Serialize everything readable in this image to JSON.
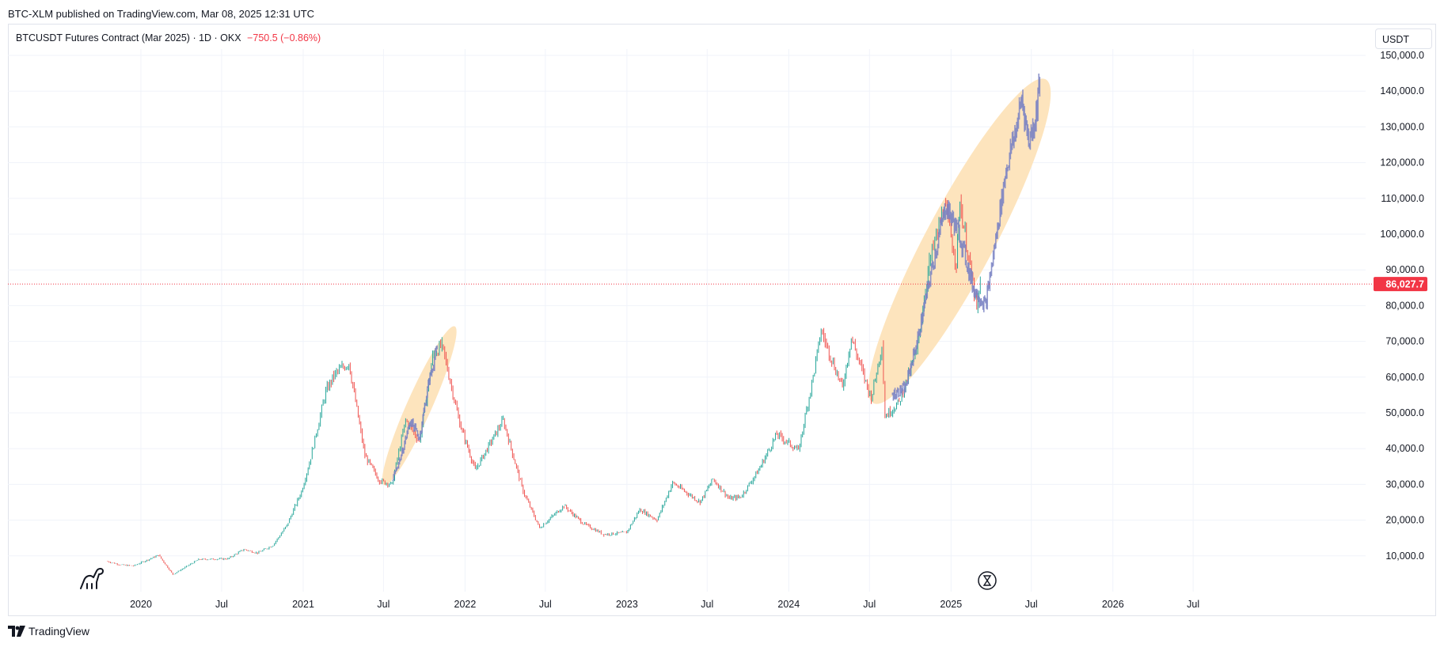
{
  "header": {
    "published": "BTC-XLM published on TradingView.com, Mar 08, 2025 12:31 UTC"
  },
  "legend": {
    "symbol": "BTCUSDT Futures Contract (Mar 2025) · 1D · OKX",
    "change": "−750.5 (−0.86%)"
  },
  "currency_button": "USDT",
  "footer": {
    "brand": "TradingView"
  },
  "colors": {
    "up": "#26a69a",
    "down": "#ef5350",
    "projection": "#7b83c4",
    "highlight": "#fde4bd",
    "last_price": "#f23645"
  },
  "icons": [
    "dino-icon",
    "hourglass-icon",
    "tradingview-logo-icon"
  ],
  "chart_data": {
    "type": "candlestick",
    "y_ticks": [
      "150,000.0",
      "140,000.0",
      "130,000.0",
      "120,000.0",
      "110,000.0",
      "100,000.0",
      "90,000.0",
      "80,000.0",
      "70,000.0",
      "60,000.0",
      "50,000.0",
      "40,000.0",
      "30,000.0",
      "20,000.0",
      "10,000.0"
    ],
    "y_tick_values": [
      150000,
      140000,
      130000,
      120000,
      110000,
      100000,
      90000,
      80000,
      70000,
      60000,
      50000,
      40000,
      30000,
      20000,
      10000
    ],
    "x_ticks": [
      "2020",
      "Jul",
      "2021",
      "Jul",
      "2022",
      "Jul",
      "2023",
      "Jul",
      "2024",
      "Jul",
      "2025",
      "Jul",
      "2026",
      "Jul"
    ],
    "x_tick_dates": [
      "2020-01-01",
      "2020-07-01",
      "2021-01-01",
      "2021-07-01",
      "2022-01-01",
      "2022-07-01",
      "2023-01-01",
      "2023-07-01",
      "2024-01-01",
      "2024-07-01",
      "2025-01-01",
      "2025-07-01",
      "2026-01-01",
      "2026-07-01"
    ],
    "last_price": 86027.7,
    "last_price_label": "86,027.7",
    "historical": [
      {
        "date": "2019-10-15",
        "close": 8500
      },
      {
        "date": "2019-11-15",
        "close": 7500
      },
      {
        "date": "2019-12-15",
        "close": 7200
      },
      {
        "date": "2020-02-10",
        "close": 10200
      },
      {
        "date": "2020-03-13",
        "close": 4800
      },
      {
        "date": "2020-05-10",
        "close": 9000
      },
      {
        "date": "2020-07-15",
        "close": 9200
      },
      {
        "date": "2020-08-20",
        "close": 11800
      },
      {
        "date": "2020-09-20",
        "close": 10800
      },
      {
        "date": "2020-10-25",
        "close": 13000
      },
      {
        "date": "2020-11-25",
        "close": 18500
      },
      {
        "date": "2020-12-28",
        "close": 28000
      },
      {
        "date": "2021-01-15",
        "close": 36000
      },
      {
        "date": "2021-02-21",
        "close": 56000
      },
      {
        "date": "2021-03-14",
        "close": 61000
      },
      {
        "date": "2021-04-14",
        "close": 64000
      },
      {
        "date": "2021-05-20",
        "close": 38000
      },
      {
        "date": "2021-06-22",
        "close": 31000
      },
      {
        "date": "2021-07-20",
        "close": 30000
      },
      {
        "date": "2021-08-20",
        "close": 48000
      },
      {
        "date": "2021-09-20",
        "close": 42000
      },
      {
        "date": "2021-10-20",
        "close": 66000
      },
      {
        "date": "2021-11-10",
        "close": 69000
      },
      {
        "date": "2021-12-20",
        "close": 47000
      },
      {
        "date": "2022-01-24",
        "close": 34000
      },
      {
        "date": "2022-03-28",
        "close": 48000
      },
      {
        "date": "2022-05-12",
        "close": 28000
      },
      {
        "date": "2022-06-18",
        "close": 17800
      },
      {
        "date": "2022-08-12",
        "close": 24000
      },
      {
        "date": "2022-09-25",
        "close": 19000
      },
      {
        "date": "2022-11-10",
        "close": 16000
      },
      {
        "date": "2022-12-31",
        "close": 16500
      },
      {
        "date": "2023-01-30",
        "close": 23000
      },
      {
        "date": "2023-03-10",
        "close": 20000
      },
      {
        "date": "2023-04-14",
        "close": 30500
      },
      {
        "date": "2023-06-15",
        "close": 25000
      },
      {
        "date": "2023-07-14",
        "close": 31500
      },
      {
        "date": "2023-08-20",
        "close": 26000
      },
      {
        "date": "2023-09-15",
        "close": 26500
      },
      {
        "date": "2023-10-25",
        "close": 34000
      },
      {
        "date": "2023-12-05",
        "close": 44000
      },
      {
        "date": "2024-01-23",
        "close": 39500
      },
      {
        "date": "2024-02-28",
        "close": 62000
      },
      {
        "date": "2024-03-14",
        "close": 73000
      },
      {
        "date": "2024-05-01",
        "close": 57000
      },
      {
        "date": "2024-05-21",
        "close": 71000
      },
      {
        "date": "2024-07-05",
        "close": 54000
      },
      {
        "date": "2024-07-29",
        "close": 69000
      },
      {
        "date": "2024-08-05",
        "close": 49000
      },
      {
        "date": "2024-09-06",
        "close": 53000
      },
      {
        "date": "2024-10-15",
        "close": 67000
      },
      {
        "date": "2024-11-13",
        "close": 92000
      },
      {
        "date": "2024-12-17",
        "close": 108000
      },
      {
        "date": "2025-01-13",
        "close": 92000
      },
      {
        "date": "2025-01-21",
        "close": 109000
      },
      {
        "date": "2025-02-28",
        "close": 79000
      },
      {
        "date": "2025-03-08",
        "close": 86000
      }
    ],
    "projections": [
      {
        "name": "",
        "points": [
          {
            "date": "2021-07-20",
            "close": 31000
          },
          {
            "date": "2021-08-10",
            "close": 38000
          },
          {
            "date": "2021-08-31",
            "close": 48000
          },
          {
            "date": "2021-09-20",
            "close": 43000
          },
          {
            "date": "2021-10-10",
            "close": 58000
          },
          {
            "date": "2021-10-30",
            "close": 68000
          }
        ]
      },
      {
        "name": "",
        "points": [
          {
            "date": "2024-08-20",
            "close": 55000
          },
          {
            "date": "2024-09-20",
            "close": 57000
          },
          {
            "date": "2024-10-20",
            "close": 72000
          },
          {
            "date": "2024-11-20",
            "close": 91000
          },
          {
            "date": "2024-12-20",
            "close": 108000
          },
          {
            "date": "2025-01-20",
            "close": 100000
          },
          {
            "date": "2025-02-20",
            "close": 85000
          },
          {
            "date": "2025-03-20",
            "close": 80000
          },
          {
            "date": "2025-04-10",
            "close": 97000
          },
          {
            "date": "2025-05-05",
            "close": 118000
          },
          {
            "date": "2025-05-25",
            "close": 128000
          },
          {
            "date": "2025-06-10",
            "close": 138000
          },
          {
            "date": "2025-06-25",
            "close": 126000
          },
          {
            "date": "2025-07-10",
            "close": 132000
          },
          {
            "date": "2025-07-20",
            "close": 143000
          }
        ]
      }
    ],
    "highlights": [
      {
        "center_date": "2021-09-20",
        "center_value": 52000,
        "from_date": "2021-07-10",
        "to_date": "2021-11-20",
        "low": 30000,
        "high": 75000
      },
      {
        "center_date": "2025-01-20",
        "center_value": 98000,
        "from_date": "2024-07-25",
        "to_date": "2025-07-25",
        "low": 52000,
        "high": 147000
      }
    ],
    "grid": true,
    "y_axis": "right"
  }
}
